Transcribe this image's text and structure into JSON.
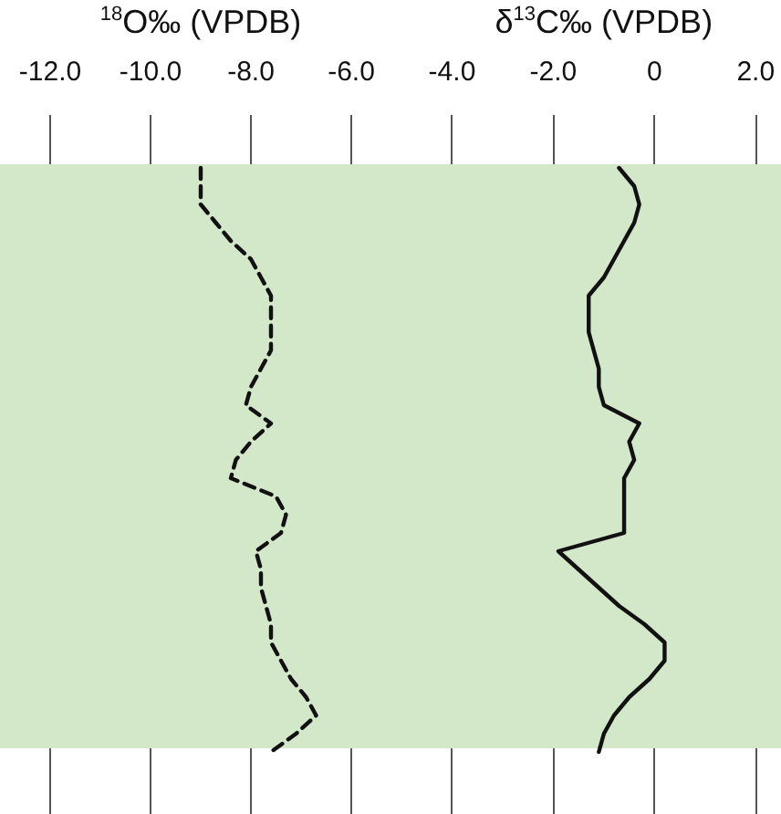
{
  "chart_data": [
    {
      "type": "line",
      "orientation": "horizontal",
      "xlabel": "$^{18}$O‰ (VPDB)",
      "categories": [
        null,
        null,
        null,
        null,
        null,
        null,
        null,
        null,
        null,
        null,
        null,
        null,
        null,
        null,
        null,
        null,
        null,
        null,
        null,
        null,
        null,
        null,
        null,
        null,
        null,
        null,
        null,
        null,
        null,
        null,
        null,
        null,
        null
      ],
      "series": [
        {
          "color": "#111111",
          "line_style": "dashed",
          "values": [
            -9.0,
            -9.0,
            -9.0,
            -8.7,
            -8.4,
            -8.0,
            -7.8,
            -7.6,
            -7.6,
            -7.6,
            -7.6,
            -7.8,
            -8.0,
            -8.1,
            -7.6,
            -8.0,
            -8.3,
            -8.4,
            -7.5,
            -7.3,
            -7.4,
            -7.9,
            -7.8,
            -7.8,
            -7.7,
            -7.6,
            -7.6,
            -7.4,
            -7.2,
            -6.9,
            -6.7,
            -7.1,
            -7.6
          ]
        }
      ],
      "xlim": [
        -13,
        -5
      ],
      "xticks": [
        {
          "value": -12,
          "label": "-12.0"
        },
        {
          "value": -10,
          "label": "-10.0"
        },
        {
          "value": -8,
          "label": "-8.0"
        },
        {
          "value": -6,
          "label": "-6.0"
        }
      ],
      "tick_labels": "x",
      "grid": "x",
      "marker": "none"
    },
    {
      "type": "line",
      "orientation": "horizontal",
      "xlabel": "δ$^{13}$C‰ (VPDB)",
      "categories": [
        null,
        null,
        null,
        null,
        null,
        null,
        null,
        null,
        null,
        null,
        null,
        null,
        null,
        null,
        null,
        null,
        null,
        null,
        null,
        null,
        null,
        null,
        null,
        null,
        null,
        null,
        null,
        null,
        null,
        null,
        null,
        null,
        null
      ],
      "series": [
        {
          "color": "#111111",
          "line_style": "solid",
          "values": [
            -0.7,
            -0.4,
            -0.3,
            -0.4,
            -0.6,
            -0.8,
            -1.0,
            -1.3,
            -1.3,
            -1.3,
            -1.2,
            -1.1,
            -1.1,
            -1.0,
            -0.3,
            -0.5,
            -0.4,
            -0.6,
            -0.6,
            -0.6,
            -0.6,
            -1.9,
            -1.5,
            -1.1,
            -0.7,
            -0.2,
            0.2,
            0.2,
            -0.1,
            -0.5,
            -0.8,
            -1.0,
            -1.1
          ]
        }
      ],
      "xlim": [
        -5,
        2.5
      ],
      "xticks": [
        {
          "value": -4,
          "label": "-4.0"
        },
        {
          "value": -2,
          "label": "-2.0"
        },
        0,
        {
          "value": 2,
          "label": "2.0"
        }
      ],
      "tick_labels": "x",
      "grid": "x",
      "marker": "none"
    }
  ]
}
